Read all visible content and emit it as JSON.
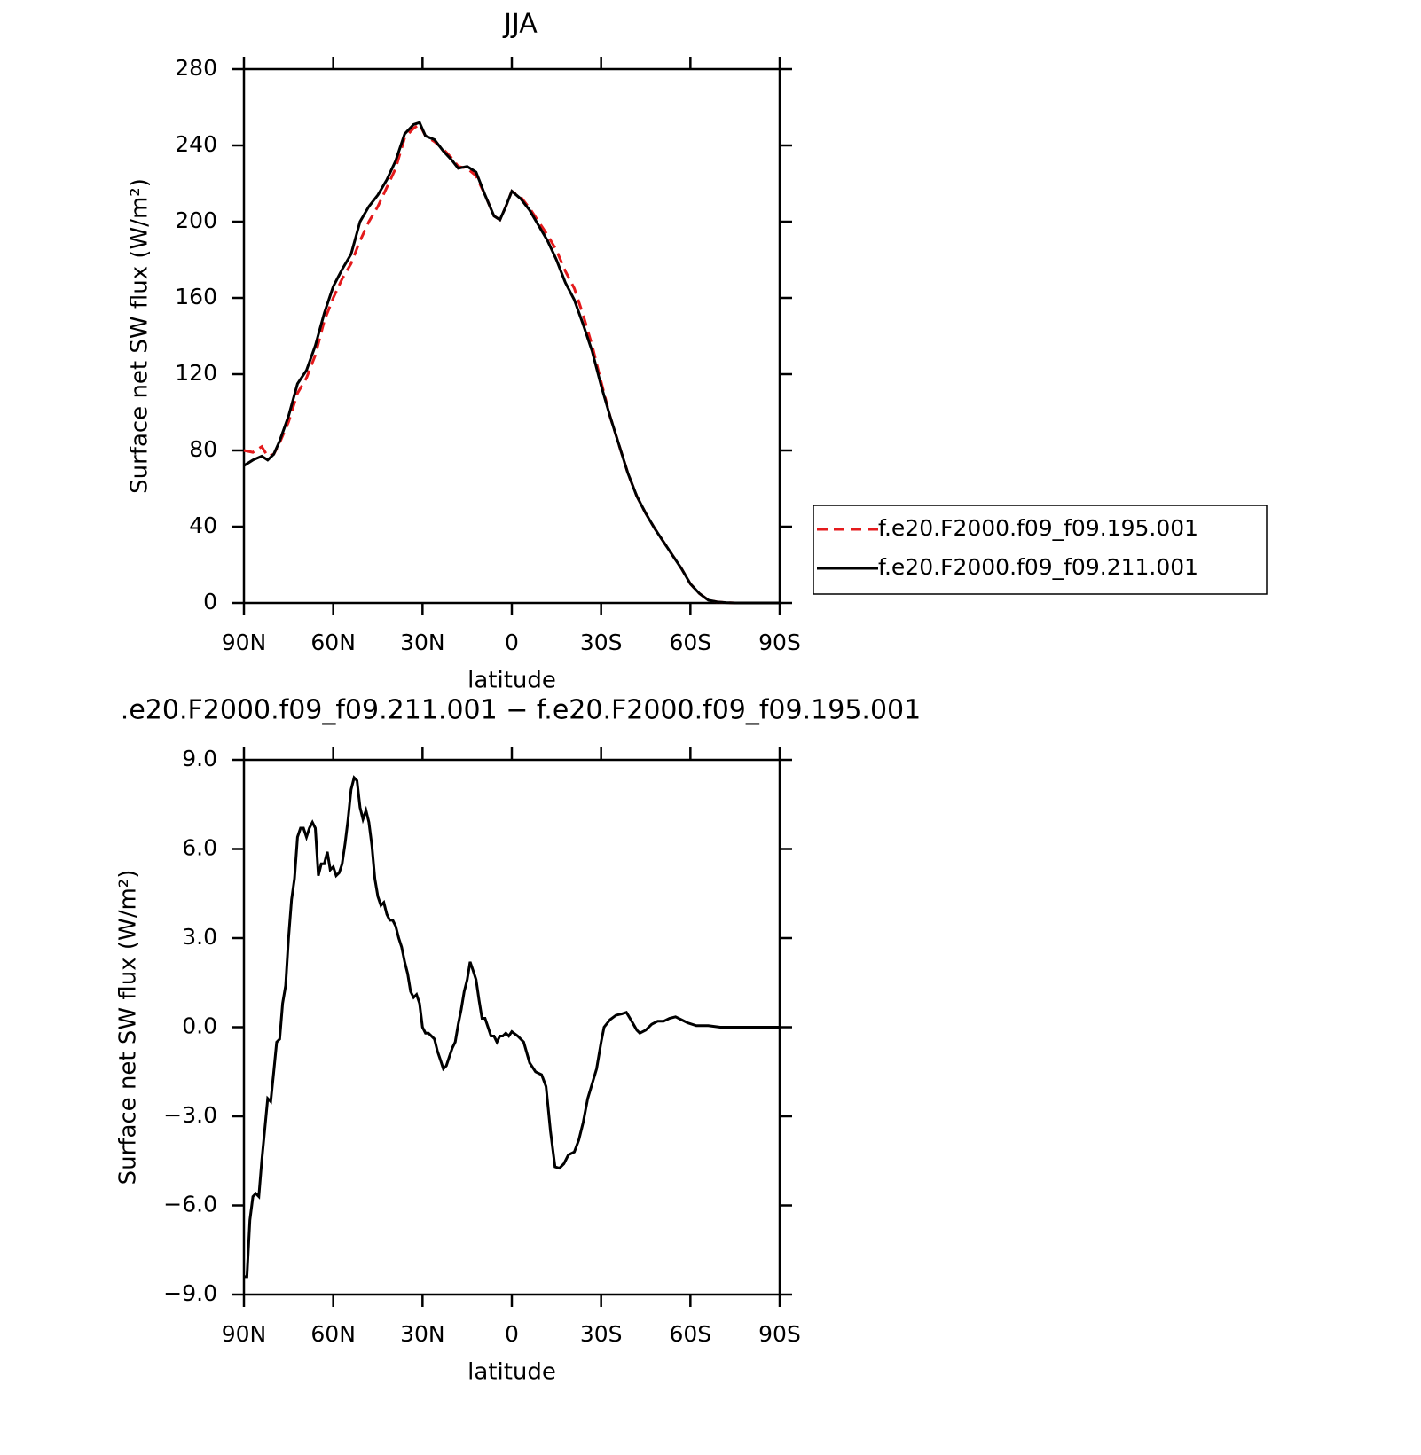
{
  "chart_data": [
    {
      "type": "line",
      "title": "JJA",
      "xlabel": "latitude",
      "ylabel": "Surface net SW flux (W/m²)",
      "xlim": [
        90,
        -90
      ],
      "xticks": [
        {
          "value": 90,
          "label": "90N"
        },
        {
          "value": 60,
          "label": "60N"
        },
        {
          "value": 30,
          "label": "30N"
        },
        0,
        {
          "value": -30,
          "label": "30S"
        },
        {
          "value": -60,
          "label": "60S"
        },
        {
          "value": -90,
          "label": "90S"
        }
      ],
      "ylim": [
        0,
        280
      ],
      "yticks": [
        0,
        40,
        80,
        120,
        160,
        200,
        240,
        280
      ],
      "x": [
        90,
        87,
        84,
        82,
        80,
        78,
        75,
        72,
        69,
        66,
        63,
        60,
        57,
        54,
        51,
        48,
        45,
        42,
        39,
        36,
        33,
        31,
        29,
        26,
        23,
        20,
        18,
        15,
        12,
        9,
        6,
        4,
        2,
        0,
        -3,
        -6,
        -9,
        -12,
        -15,
        -18,
        -21,
        -24,
        -27,
        -30,
        -33,
        -36,
        -39,
        -42,
        -45,
        -48,
        -51,
        -54,
        -57,
        -60,
        -63,
        -66,
        -69,
        -72,
        -75,
        -80,
        -90
      ],
      "series": [
        {
          "name": "f.e20.F2000.f09_f09.195.001",
          "color": "#e41a1c",
          "linestyle": "dashed",
          "values": [
            80,
            79,
            82,
            77,
            78,
            84,
            95,
            110,
            118,
            130,
            148,
            160,
            170,
            178,
            190,
            200,
            208,
            218,
            228,
            244,
            249,
            251,
            245,
            242,
            238,
            233,
            229,
            228,
            224,
            214,
            203,
            201,
            208,
            216,
            213,
            207,
            200,
            193,
            185,
            174,
            165,
            151,
            135,
            116,
            98,
            83,
            68,
            56,
            47,
            39,
            32,
            25,
            18,
            10,
            5,
            1.5,
            0.5,
            0.2,
            0,
            0,
            0
          ]
        },
        {
          "name": "f.e20.F2000.f09_f09.211.001",
          "color": "#000000",
          "linestyle": "solid",
          "values": [
            72,
            75,
            77,
            75,
            78,
            85,
            98,
            115,
            122,
            135,
            152,
            166,
            175,
            183,
            200,
            208,
            214,
            222,
            232,
            246,
            251,
            252,
            245,
            243,
            237,
            232,
            228,
            229,
            226,
            214,
            203,
            201,
            208,
            216,
            212,
            206,
            198,
            190,
            180,
            168,
            159,
            146,
            132,
            114,
            98,
            83,
            68,
            56,
            47,
            39,
            32,
            25,
            18,
            10,
            5,
            1.5,
            0.5,
            0.2,
            0,
            0,
            0
          ]
        }
      ]
    },
    {
      "type": "line",
      "title": ".e20.F2000.f09_f09.211.001 − f.e20.F2000.f09_f09.195.001",
      "xlabel": "latitude",
      "ylabel": "Surface net SW flux (W/m²)",
      "xlim": [
        90,
        -90
      ],
      "xticks": [
        {
          "value": 90,
          "label": "90N"
        },
        {
          "value": 60,
          "label": "60N"
        },
        {
          "value": 30,
          "label": "30N"
        },
        0,
        {
          "value": -30,
          "label": "30S"
        },
        {
          "value": -60,
          "label": "60S"
        },
        {
          "value": -90,
          "label": "90S"
        }
      ],
      "ylim": [
        -9,
        9
      ],
      "yticks": [
        {
          "value": -9,
          "label": "−9.0"
        },
        {
          "value": -6,
          "label": "−6.0"
        },
        {
          "value": -3,
          "label": "−3.0"
        },
        {
          "value": 0,
          "label": "0.0"
        },
        {
          "value": 3,
          "label": "3.0"
        },
        {
          "value": 6,
          "label": "6.0"
        },
        {
          "value": 9,
          "label": "9.0"
        }
      ],
      "x": [
        90,
        89,
        88,
        87,
        86,
        85,
        84,
        82,
        81,
        80,
        79,
        78,
        77,
        76,
        75,
        74,
        73,
        72,
        71,
        70,
        69,
        68,
        67,
        66,
        65,
        64,
        63,
        62,
        61,
        60,
        59,
        58,
        57,
        56,
        55,
        54,
        53,
        52,
        51,
        50,
        49,
        48,
        47,
        46,
        45,
        44,
        43,
        42,
        41,
        40,
        39,
        38,
        37,
        36,
        35,
        34,
        33,
        32,
        31,
        30,
        29,
        28,
        27,
        26,
        25,
        24,
        23,
        22,
        21,
        20,
        19,
        18,
        17,
        16,
        15,
        14,
        13,
        12,
        11,
        10,
        9,
        8,
        7,
        6,
        5,
        4,
        3,
        2,
        1,
        0,
        -2,
        -4,
        -6,
        -8,
        -10,
        -11.5,
        -13,
        -14.5,
        -16,
        -17.5,
        -19,
        -21,
        -22.5,
        -24,
        -25.5,
        -27,
        -28.5,
        -30,
        -31,
        -33,
        -35,
        -37,
        -38.5,
        -40,
        -42,
        -43,
        -45,
        -47,
        -49,
        -51,
        -53,
        -55,
        -57,
        -59,
        -62,
        -66,
        -70,
        -90
      ],
      "series": [
        {
          "color": "#000000",
          "linestyle": "solid",
          "values": [
            -8.4,
            -8.4,
            -6.5,
            -5.7,
            -5.6,
            -5.7,
            -4.5,
            -2.4,
            -2.5,
            -1.5,
            -0.5,
            -0.4,
            0.8,
            1.4,
            3.0,
            4.3,
            5.0,
            6.4,
            6.7,
            6.7,
            6.4,
            6.7,
            6.9,
            6.7,
            5.1,
            5.5,
            5.5,
            5.9,
            5.3,
            5.4,
            5.1,
            5.2,
            5.5,
            6.2,
            7.0,
            8.0,
            8.4,
            8.3,
            7.4,
            7.0,
            7.3,
            6.9,
            6.1,
            5.0,
            4.4,
            4.1,
            4.2,
            3.8,
            3.6,
            3.6,
            3.4,
            3.0,
            2.7,
            2.2,
            1.8,
            1.2,
            1.0,
            1.1,
            0.8,
            0.0,
            -0.2,
            -0.2,
            -0.3,
            -0.4,
            -0.8,
            -1.1,
            -1.4,
            -1.3,
            -1.0,
            -0.7,
            -0.5,
            0.1,
            0.6,
            1.2,
            1.6,
            2.2,
            1.9,
            1.6,
            0.9,
            0.3,
            0.3,
            0.0,
            -0.3,
            -0.3,
            -0.5,
            -0.3,
            -0.3,
            -0.2,
            -0.3,
            -0.15,
            -0.3,
            -0.5,
            -1.2,
            -1.5,
            -1.6,
            -2.0,
            -3.5,
            -4.7,
            -4.75,
            -4.6,
            -4.3,
            -4.2,
            -3.8,
            -3.2,
            -2.4,
            -1.9,
            -1.4,
            -0.5,
            0,
            0.25,
            0.4,
            0.45,
            0.5,
            0.25,
            -0.1,
            -0.2,
            -0.1,
            0.1,
            0.2,
            0.2,
            0.3,
            0.35,
            0.25,
            0.15,
            0.05,
            0.05,
            0,
            0
          ]
        }
      ]
    }
  ]
}
